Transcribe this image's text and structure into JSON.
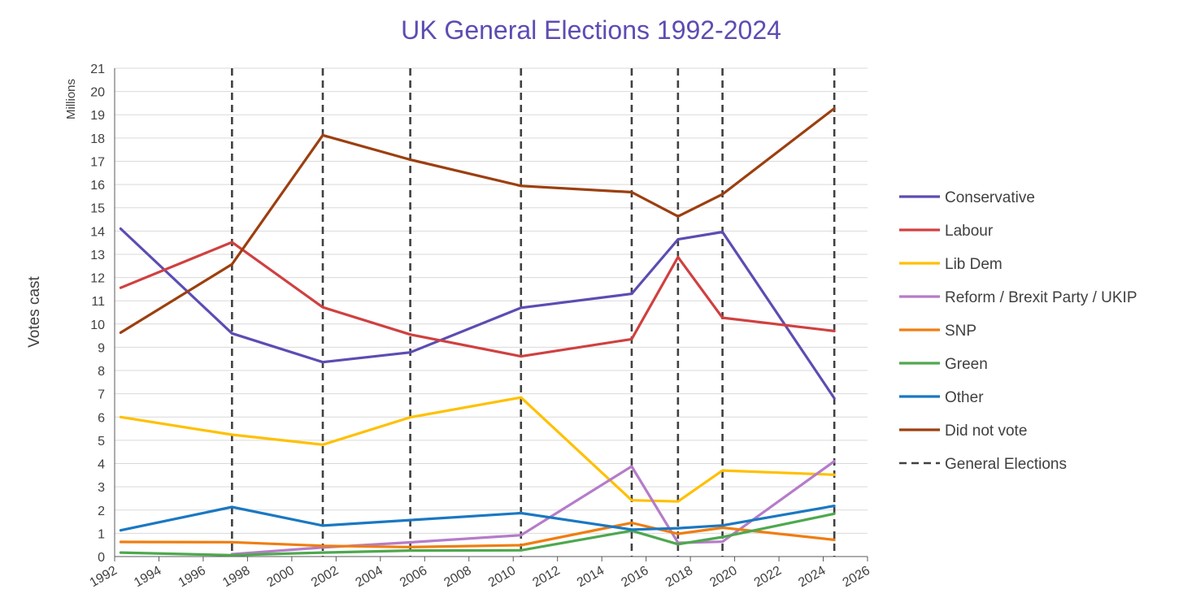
{
  "chart_data": {
    "type": "line",
    "title": "UK General Elections 1992-2024",
    "ylabel": "Votes cast",
    "yunit": "Millions",
    "xlim": [
      1992,
      2026
    ],
    "ylim": [
      0,
      21
    ],
    "x_ticks": [
      "1992",
      "1994",
      "1996",
      "1998",
      "2000",
      "2002",
      "2004",
      "2006",
      "2008",
      "2010",
      "2012",
      "2014",
      "2016",
      "2018",
      "2020",
      "2022",
      "2024",
      "2026"
    ],
    "y_ticks": [
      "0",
      "1",
      "2",
      "3",
      "4",
      "5",
      "6",
      "7",
      "8",
      "9",
      "10",
      "11",
      "12",
      "13",
      "14",
      "15",
      "16",
      "17",
      "18",
      "19",
      "20",
      "21"
    ],
    "grid": "horizontal",
    "legend_position": "right",
    "election_markers": {
      "name": "General Elections",
      "color": "#404040",
      "style": "dashed",
      "x": [
        1997.3,
        2001.4,
        2005.35,
        2010.35,
        2015.35,
        2017.44,
        2019.45,
        2024.5
      ]
    },
    "series": [
      {
        "name": "Conservative",
        "color": "#5B4DB3",
        "x": [
          1992.27,
          1997.3,
          2001.4,
          2005.35,
          2010.35,
          2015.35,
          2017.44,
          2019.45,
          2024.5
        ],
        "values": [
          14.1,
          9.6,
          8.36,
          8.78,
          10.7,
          11.3,
          13.64,
          13.96,
          6.81
        ]
      },
      {
        "name": "Labour",
        "color": "#D04040",
        "x": [
          1992.27,
          1997.3,
          2001.4,
          2005.35,
          2010.35,
          2015.35,
          2017.44,
          2019.45,
          2024.5
        ],
        "values": [
          11.56,
          13.52,
          10.72,
          9.55,
          8.61,
          9.35,
          12.88,
          10.27,
          9.7
        ]
      },
      {
        "name": "Lib Dem",
        "color": "#FFC000",
        "x": [
          1992.27,
          1997.3,
          2001.4,
          2005.35,
          2010.35,
          2015.35,
          2017.44,
          2019.45,
          2024.5
        ],
        "values": [
          6.0,
          5.24,
          4.81,
          5.99,
          6.84,
          2.42,
          2.37,
          3.7,
          3.52
        ]
      },
      {
        "name": "Reform / Brexit Party / UKIP",
        "color": "#B57CC8",
        "x": [
          1997.3,
          2001.4,
          2005.35,
          2010.35,
          2015.35,
          2017.44,
          2019.45,
          2024.5
        ],
        "values": [
          0.1,
          0.39,
          0.61,
          0.92,
          3.88,
          0.59,
          0.64,
          4.1
        ]
      },
      {
        "name": "SNP",
        "color": "#F07D10",
        "x": [
          1992.27,
          1997.3,
          2001.4,
          2005.35,
          2010.35,
          2015.35,
          2017.44,
          2019.45,
          2024.5
        ],
        "values": [
          0.63,
          0.62,
          0.46,
          0.41,
          0.49,
          1.45,
          0.98,
          1.24,
          0.72
        ]
      },
      {
        "name": "Green",
        "color": "#4EA84E",
        "x": [
          1992.27,
          1997.3,
          2001.4,
          2005.35,
          2010.35,
          2015.35,
          2017.44,
          2019.45,
          2024.5
        ],
        "values": [
          0.17,
          0.06,
          0.17,
          0.26,
          0.27,
          1.11,
          0.53,
          0.84,
          1.84
        ]
      },
      {
        "name": "Other",
        "color": "#1A78C2",
        "x": [
          1992.27,
          1997.3,
          2001.4,
          2005.35,
          2010.35,
          2015.35,
          2017.44,
          2019.45,
          2024.5
        ],
        "values": [
          1.13,
          2.13,
          1.33,
          1.57,
          1.87,
          1.16,
          1.22,
          1.34,
          2.18
        ]
      },
      {
        "name": "Did not vote",
        "color": "#9C3F0F",
        "x": [
          1992.27,
          1997.3,
          2001.4,
          2005.35,
          2010.35,
          2015.35,
          2017.44,
          2019.45,
          2024.5
        ],
        "values": [
          9.63,
          12.57,
          18.12,
          17.07,
          15.94,
          15.67,
          14.63,
          15.58,
          19.27
        ]
      }
    ]
  },
  "colors": {
    "title": "#5B4DB3",
    "grid": "#D9D9D9",
    "axis": "#595959",
    "text": "#404040"
  }
}
